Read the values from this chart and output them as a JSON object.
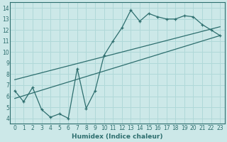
{
  "xlabel": "Humidex (Indice chaleur)",
  "xlim": [
    -0.5,
    23.5
  ],
  "ylim": [
    3.5,
    14.5
  ],
  "xticks": [
    0,
    1,
    2,
    3,
    4,
    5,
    6,
    7,
    8,
    9,
    10,
    11,
    12,
    13,
    14,
    15,
    16,
    17,
    18,
    19,
    20,
    21,
    22,
    23
  ],
  "yticks": [
    4,
    5,
    6,
    7,
    8,
    9,
    10,
    11,
    12,
    13,
    14
  ],
  "bg_color": "#cce8e8",
  "line_color": "#2d6e6e",
  "grid_color": "#b0d8d8",
  "line1_x": [
    0,
    1,
    2,
    3,
    4,
    5,
    6,
    7,
    8,
    9,
    10,
    11,
    12,
    13,
    14,
    15,
    16,
    17,
    18,
    19,
    20,
    21,
    22,
    23
  ],
  "line1_y": [
    6.5,
    5.5,
    6.8,
    4.8,
    4.1,
    4.4,
    4.0,
    8.5,
    4.9,
    6.5,
    9.7,
    11.0,
    12.2,
    13.8,
    12.8,
    13.5,
    13.2,
    13.0,
    13.0,
    13.3,
    13.2,
    12.5,
    12.0,
    11.5
  ],
  "line2_x": [
    0,
    23
  ],
  "line2_y": [
    5.8,
    11.5
  ],
  "line3_x": [
    0,
    23
  ],
  "line3_y": [
    7.5,
    12.3
  ]
}
